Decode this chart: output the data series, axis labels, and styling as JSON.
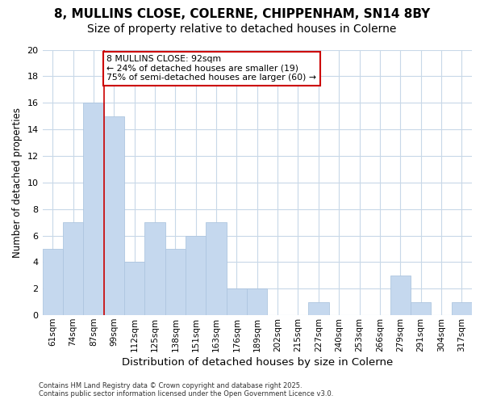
{
  "title1": "8, MULLINS CLOSE, COLERNE, CHIPPENHAM, SN14 8BY",
  "title2": "Size of property relative to detached houses in Colerne",
  "xlabel": "Distribution of detached houses by size in Colerne",
  "ylabel": "Number of detached properties",
  "categories": [
    "61sqm",
    "74sqm",
    "87sqm",
    "99sqm",
    "112sqm",
    "125sqm",
    "138sqm",
    "151sqm",
    "163sqm",
    "176sqm",
    "189sqm",
    "202sqm",
    "215sqm",
    "227sqm",
    "240sqm",
    "253sqm",
    "266sqm",
    "279sqm",
    "291sqm",
    "304sqm",
    "317sqm"
  ],
  "values": [
    5,
    7,
    16,
    15,
    4,
    7,
    5,
    6,
    7,
    2,
    2,
    0,
    0,
    1,
    0,
    0,
    0,
    3,
    1,
    0,
    1
  ],
  "bar_color": "#c5d8ee",
  "bar_edge_color": "#aec6e0",
  "annotation_text": "8 MULLINS CLOSE: 92sqm\n← 24% of detached houses are smaller (19)\n75% of semi-detached houses are larger (60) →",
  "annotation_box_color": "#ffffff",
  "annotation_box_edge": "#cc0000",
  "footer": "Contains HM Land Registry data © Crown copyright and database right 2025.\nContains public sector information licensed under the Open Government Licence v3.0.",
  "ylim": [
    0,
    20
  ],
  "yticks": [
    0,
    2,
    4,
    6,
    8,
    10,
    12,
    14,
    16,
    18,
    20
  ],
  "grid_color": "#c8d8e8",
  "bg_color": "#ffffff",
  "red_line_after_index": 2,
  "title1_fontsize": 11,
  "title2_fontsize": 10
}
